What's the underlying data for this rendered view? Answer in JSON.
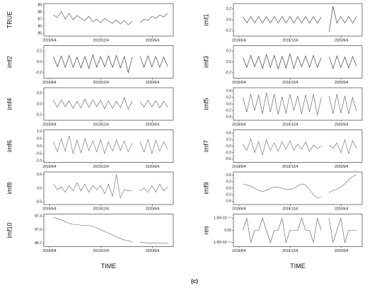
{
  "chart_data": [
    {
      "type": "line",
      "ylabel": "TRUE",
      "color": "#444",
      "x": [
        14,
        28,
        42,
        56,
        70,
        84,
        98,
        112,
        126,
        140,
        154,
        168,
        182,
        196,
        210,
        224,
        238,
        252,
        266,
        280,
        294,
        308,
        322,
        336,
        350,
        364,
        378,
        392,
        406,
        420
      ],
      "values": [
        87.6,
        87.2,
        88.1,
        87.0,
        87.8,
        86.9,
        87.5,
        87.1,
        86.8,
        87.4,
        86.6,
        87.0,
        86.5,
        87.1,
        86.7,
        86.4,
        86.9,
        86.3,
        86.8,
        86.2,
        86.7,
        null,
        86.5,
        87.0,
        86.8,
        87.4,
        87.1,
        87.6,
        87.3,
        87.8
      ],
      "xlim": [
        -20,
        440
      ],
      "xticks": [
        {
          "value": 0,
          "label": "2019/6/4"
        },
        {
          "value": 183,
          "label": "2019/12/4"
        },
        {
          "value": 366,
          "label": "2020/6/4"
        }
      ],
      "ylim": [
        84.6,
        89.2
      ],
      "yticks": [
        85,
        86,
        87,
        88,
        89
      ]
    },
    {
      "type": "line",
      "ylabel": "imf1",
      "color": "#222",
      "x": [
        14,
        28,
        42,
        56,
        70,
        84,
        98,
        112,
        126,
        140,
        154,
        168,
        182,
        196,
        210,
        224,
        238,
        252,
        266,
        280,
        294,
        308,
        322,
        336,
        350,
        364,
        378,
        392,
        406,
        420
      ],
      "values": [
        0.06,
        -0.06,
        0.06,
        -0.06,
        0.06,
        -0.06,
        0.06,
        -0.06,
        0.06,
        -0.06,
        0.06,
        -0.06,
        0.06,
        -0.06,
        0.06,
        -0.06,
        0.06,
        -0.06,
        0.06,
        -0.06,
        0.05,
        null,
        -0.22,
        0.25,
        -0.06,
        0.06,
        -0.06,
        0.06,
        -0.06,
        0.06
      ],
      "xlim": [
        -20,
        440
      ],
      "xticks": [
        {
          "value": 0,
          "label": "2019/6/4"
        },
        {
          "value": 183,
          "label": "2019/12/4"
        },
        {
          "value": 366,
          "label": "2020/6/4"
        }
      ],
      "ylim": [
        -0.3,
        0.3
      ],
      "yticks": [
        -0.2,
        {
          "value": 0,
          "label": "0.0"
        },
        0.2
      ]
    },
    {
      "type": "line",
      "ylabel": "imf2",
      "color": "#222",
      "x": [
        14,
        28,
        42,
        56,
        70,
        84,
        98,
        112,
        126,
        140,
        154,
        168,
        182,
        196,
        210,
        224,
        238,
        252,
        266,
        280,
        294,
        308,
        322,
        336,
        350,
        364,
        378,
        392,
        406,
        420
      ],
      "values": [
        0.1,
        -0.09,
        0.11,
        -0.1,
        0.12,
        -0.1,
        0.09,
        -0.11,
        0.1,
        -0.12,
        0.13,
        -0.1,
        0.1,
        -0.09,
        0.11,
        -0.1,
        0.12,
        -0.11,
        0.1,
        -0.2,
        0.09,
        null,
        0.1,
        -0.1,
        0.11,
        -0.09,
        0.1,
        -0.1,
        0.09,
        -0.08
      ],
      "xlim": [
        -20,
        440
      ],
      "xticks": [
        {
          "value": 0,
          "label": "2019/6/4"
        },
        {
          "value": 183,
          "label": "2019/12/4"
        },
        {
          "value": 366,
          "label": "2020/6/4"
        }
      ],
      "ylim": [
        -0.3,
        0.3
      ],
      "yticks": [
        -0.2,
        {
          "value": 0,
          "label": "0.0"
        },
        0.2
      ]
    },
    {
      "type": "line",
      "ylabel": "imf3",
      "color": "#222",
      "x": [
        14,
        28,
        42,
        56,
        70,
        84,
        98,
        112,
        126,
        140,
        154,
        168,
        182,
        196,
        210,
        224,
        238,
        252,
        266,
        280,
        294,
        308,
        322,
        336,
        350,
        364,
        378,
        392,
        406,
        420
      ],
      "values": [
        0.08,
        -0.1,
        0.12,
        -0.09,
        0.1,
        -0.12,
        0.14,
        -0.1,
        0.12,
        -0.13,
        0.1,
        -0.11,
        0.15,
        -0.12,
        0.1,
        -0.09,
        0.11,
        -0.1,
        0.12,
        -0.1,
        0.08,
        null,
        0.1,
        -0.12,
        0.11,
        -0.1,
        0.09,
        -0.11,
        0.1,
        -0.08
      ],
      "xlim": [
        -20,
        440
      ],
      "xticks": [
        {
          "value": 0,
          "label": "2019/6/4"
        },
        {
          "value": 183,
          "label": "2019/12/4"
        },
        {
          "value": 366,
          "label": "2020/6/4"
        }
      ],
      "ylim": [
        -0.3,
        0.3
      ],
      "yticks": [
        -0.2,
        {
          "value": 0,
          "label": "0.0"
        },
        0.2
      ]
    },
    {
      "type": "line",
      "ylabel": "imf4",
      "color": "#555",
      "x": [
        14,
        28,
        42,
        56,
        70,
        84,
        98,
        112,
        126,
        140,
        154,
        168,
        182,
        196,
        210,
        224,
        238,
        252,
        266,
        280,
        294,
        308,
        322,
        336,
        350,
        364,
        378,
        392,
        406,
        420
      ],
      "values": [
        0.07,
        -0.06,
        0.08,
        -0.05,
        0.06,
        -0.08,
        0.05,
        -0.07,
        0.09,
        -0.06,
        0.08,
        -0.05,
        0.07,
        -0.09,
        0.06,
        -0.08,
        0.05,
        -0.07,
        0.12,
        -0.1,
        0.06,
        null,
        0.05,
        -0.06,
        0.07,
        -0.05,
        0.06,
        -0.07,
        0.05,
        -0.06
      ],
      "xlim": [
        -20,
        440
      ],
      "xticks": [
        {
          "value": 0,
          "label": "2019/6/4"
        },
        {
          "value": 183,
          "label": "2019/12/4"
        },
        {
          "value": 366,
          "label": "2020/6/4"
        }
      ],
      "ylim": [
        -0.3,
        0.3
      ],
      "yticks": [
        -0.2,
        {
          "value": 0,
          "label": "0.0"
        },
        0.2
      ]
    },
    {
      "type": "line",
      "ylabel": "imf5",
      "color": "#555",
      "x": [
        14,
        28,
        42,
        56,
        70,
        84,
        98,
        112,
        126,
        140,
        154,
        168,
        182,
        196,
        210,
        224,
        238,
        252,
        266,
        280,
        294,
        308,
        322,
        336,
        350,
        364,
        378,
        392,
        406,
        420
      ],
      "values": [
        0.2,
        -0.25,
        0.3,
        -0.2,
        0.28,
        -0.3,
        0.35,
        -0.25,
        0.3,
        -0.32,
        0.22,
        -0.28,
        0.3,
        -0.2,
        0.25,
        -0.3,
        0.28,
        -0.25,
        0.3,
        -0.35,
        0.2,
        null,
        0.25,
        -0.3,
        0.3,
        -0.28,
        0.25,
        -0.3,
        0.2,
        -0.22
      ],
      "xlim": [
        -20,
        440
      ],
      "xticks": [
        {
          "value": 0,
          "label": "2019/6/4"
        },
        {
          "value": 183,
          "label": "2019/12/4"
        },
        {
          "value": 366,
          "label": "2020/6/4"
        }
      ],
      "ylim": [
        -0.5,
        0.5
      ],
      "yticks": [
        -0.4,
        -0.2,
        {
          "value": 0,
          "label": "0.0"
        },
        0.2,
        0.4
      ]
    },
    {
      "type": "line",
      "ylabel": "imf6",
      "color": "#666",
      "x": [
        14,
        28,
        42,
        56,
        70,
        84,
        98,
        112,
        126,
        140,
        154,
        168,
        182,
        196,
        210,
        224,
        238,
        252,
        266,
        280,
        294,
        308,
        322,
        336,
        350,
        364,
        378,
        392,
        406,
        420
      ],
      "values": [
        0.3,
        -0.4,
        0.5,
        -0.35,
        0.7,
        -0.5,
        0.4,
        -0.45,
        0.5,
        -0.3,
        0.35,
        -0.4,
        0.45,
        -0.5,
        0.3,
        -0.35,
        0.4,
        -0.3,
        0.35,
        -0.4,
        0.2,
        null,
        0.3,
        -0.4,
        0.45,
        -0.5,
        0.4,
        -0.35,
        0.3,
        -0.2
      ],
      "xlim": [
        -20,
        440
      ],
      "xticks": [
        {
          "value": 0,
          "label": "2019/6/4"
        },
        {
          "value": 183,
          "label": "2019/12/4"
        },
        {
          "value": 366,
          "label": "2020/6/4"
        }
      ],
      "ylim": [
        -1.1,
        1.1
      ],
      "yticks": [
        {
          "value": -1,
          "label": "-1.0"
        },
        -0.5,
        {
          "value": 0,
          "label": "0.0"
        },
        0.5,
        {
          "value": 1,
          "label": "1.0"
        }
      ]
    },
    {
      "type": "line",
      "ylabel": "imf7",
      "color": "#666",
      "x": [
        14,
        28,
        42,
        56,
        70,
        84,
        98,
        112,
        126,
        140,
        154,
        168,
        182,
        196,
        210,
        224,
        238,
        252,
        266,
        280,
        294,
        308,
        322,
        336,
        350,
        364,
        378,
        392,
        406,
        420
      ],
      "values": [
        0.1,
        -0.2,
        0.35,
        -0.3,
        0.2,
        -0.4,
        0.3,
        -0.2,
        0.15,
        -0.25,
        0.2,
        -0.15,
        0.25,
        -0.2,
        0.1,
        -0.15,
        0.2,
        -0.25,
        0.05,
        -0.1,
        0.0,
        null,
        0.05,
        -0.1,
        0.15,
        -0.3,
        0.3,
        -0.35,
        0.25,
        -0.1
      ],
      "xlim": [
        -20,
        440
      ],
      "xticks": [
        {
          "value": 0,
          "label": "2019/6/4"
        },
        {
          "value": 183,
          "label": "2019/12/4"
        },
        {
          "value": 366,
          "label": "2020/6/4"
        }
      ],
      "ylim": [
        -0.75,
        0.75
      ],
      "yticks": [
        -0.6,
        -0.3,
        {
          "value": 0,
          "label": "0.0"
        },
        0.3,
        0.6
      ]
    },
    {
      "type": "line",
      "ylabel": "imf8",
      "color": "#666",
      "x": [
        14,
        28,
        42,
        56,
        70,
        84,
        98,
        112,
        126,
        140,
        154,
        168,
        182,
        196,
        210,
        224,
        238,
        252,
        266,
        280,
        294,
        308,
        322,
        336,
        350,
        364,
        378,
        392,
        406,
        420
      ],
      "values": [
        0.15,
        -0.05,
        0.05,
        -0.15,
        0.1,
        -0.1,
        0.2,
        -0.1,
        0.15,
        -0.15,
        0.1,
        -0.05,
        0.1,
        -0.2,
        0.15,
        -0.3,
        0.5,
        -0.35,
        -0.05,
        -0.1,
        -0.1,
        null,
        -0.1,
        0.0,
        -0.15,
        0.1,
        -0.15,
        0.15,
        -0.1,
        0.05
      ],
      "xlim": [
        -20,
        440
      ],
      "xticks": [
        {
          "value": 0,
          "label": "2019/6/4"
        },
        {
          "value": 183,
          "label": "2019/12/4"
        },
        {
          "value": 366,
          "label": "2020/6/4"
        }
      ],
      "ylim": [
        -0.6,
        0.6
      ],
      "yticks": [
        -0.5,
        {
          "value": 0,
          "label": "0.0"
        },
        0.5
      ]
    },
    {
      "type": "line",
      "ylabel": "imf9",
      "color": "#666",
      "x": [
        14,
        28,
        42,
        56,
        70,
        84,
        98,
        112,
        126,
        140,
        154,
        168,
        182,
        196,
        210,
        224,
        238,
        252,
        266,
        280,
        294,
        308,
        322,
        336,
        350,
        364,
        378,
        392,
        406,
        420
      ],
      "values": [
        0.2,
        0.15,
        0.1,
        0.0,
        -0.1,
        -0.15,
        -0.1,
        0.0,
        0.05,
        0.05,
        0.0,
        -0.05,
        -0.05,
        0.0,
        0.1,
        0.2,
        0.15,
        -0.05,
        -0.3,
        -0.45,
        -0.4,
        null,
        -0.2,
        -0.1,
        -0.05,
        0.05,
        0.2,
        0.4,
        0.55,
        0.6
      ],
      "xlim": [
        -20,
        440
      ],
      "xticks": [
        {
          "value": 0,
          "label": "2019/6/4"
        },
        {
          "value": 183,
          "label": "2019/12/4"
        },
        {
          "value": 366,
          "label": "2020/6/4"
        }
      ],
      "ylim": [
        -0.75,
        0.75
      ],
      "yticks": [
        -0.6,
        -0.3,
        {
          "value": 0,
          "label": "0.0"
        },
        0.3,
        0.6
      ]
    },
    {
      "type": "line",
      "ylabel": "imf10",
      "xlabel": "TIME",
      "color": "#666",
      "x": [
        14,
        28,
        42,
        56,
        70,
        84,
        98,
        112,
        126,
        140,
        154,
        168,
        182,
        196,
        210,
        224,
        238,
        252,
        266,
        280,
        294,
        308,
        322,
        336,
        350,
        364,
        378,
        392,
        406,
        420
      ],
      "values": [
        87.28,
        87.25,
        87.22,
        87.18,
        87.14,
        87.12,
        87.11,
        87.1,
        87.1,
        87.09,
        87.07,
        87.04,
        87.0,
        86.96,
        86.92,
        86.88,
        86.84,
        86.8,
        86.77,
        86.75,
        86.73,
        null,
        86.72,
        86.71,
        86.7,
        86.7,
        86.7,
        86.7,
        86.7,
        86.7
      ],
      "xlim": [
        -20,
        440
      ],
      "xticks": [
        {
          "value": 0,
          "label": "2019/6/4"
        },
        {
          "value": 183,
          "label": "2019/12/4"
        },
        {
          "value": 366,
          "label": "2020/6/4"
        }
      ],
      "ylim": [
        86.62,
        87.35
      ],
      "yticks": [
        86.7,
        {
          "value": 87,
          "label": "87.0"
        },
        87.3
      ]
    },
    {
      "type": "line",
      "ylabel": "res",
      "xlabel": "TIME",
      "color": "#555",
      "x": [
        14,
        28,
        42,
        56,
        70,
        84,
        98,
        112,
        126,
        140,
        154,
        168,
        182,
        196,
        210,
        224,
        238,
        252,
        266,
        280,
        294,
        308,
        322,
        336,
        350,
        364,
        378,
        392,
        406,
        420
      ],
      "values": [
        0,
        1.5e-14,
        -1.5e-14,
        0,
        0,
        1.5e-14,
        0,
        -1.5e-14,
        0,
        0,
        1.5e-14,
        -1.5e-14,
        0,
        0,
        0,
        1.5e-14,
        0,
        0,
        -1.5e-14,
        1.5e-14,
        0,
        null,
        1.5e-14,
        -1.5e-14,
        0,
        1.5e-14,
        -1.5e-14,
        0,
        0,
        0
      ],
      "xlim": [
        -20,
        440
      ],
      "xticks": [
        {
          "value": 0,
          "label": "2019/6/4"
        },
        {
          "value": 183,
          "label": "2019/12/4"
        },
        {
          "value": 366,
          "label": "2020/6/4"
        }
      ],
      "ylim": [
        -2e-14,
        2e-14
      ],
      "yticks": [
        {
          "value": -1.5e-14,
          "label": "-1.50×10⁻¹⁴"
        },
        {
          "value": 0,
          "label": "0.00"
        },
        {
          "value": 1.5e-14,
          "label": "1.50×10⁻¹⁴"
        }
      ]
    }
  ],
  "caption": "(c)"
}
